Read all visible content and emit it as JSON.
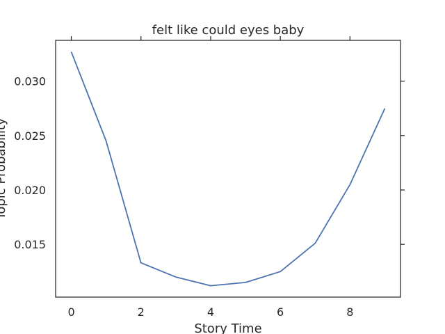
{
  "chart_data": {
    "type": "line",
    "title": "felt like could eyes baby",
    "xlabel": "Story Time",
    "ylabel": "Topic Probability",
    "x": [
      0,
      1,
      2,
      3,
      4,
      5,
      6,
      7,
      8,
      9
    ],
    "series": [
      {
        "values": [
          0.0327,
          0.0245,
          0.0133,
          0.012,
          0.0112,
          0.0115,
          0.0125,
          0.0151,
          0.0205,
          0.0275
        ],
        "color": "#4c72b0"
      }
    ],
    "xlim": [
      -0.45,
      9.45
    ],
    "ylim": [
      0.01015,
      0.03375
    ],
    "xticks": [
      0,
      2,
      4,
      6,
      8
    ],
    "xtick_labels": [
      "0",
      "2",
      "4",
      "6",
      "8"
    ],
    "yticks": [
      0.015,
      0.02,
      0.025,
      0.03
    ],
    "ytick_labels": [
      "0.015",
      "0.020",
      "0.025",
      "0.030"
    ],
    "grid": false,
    "legend": "none"
  }
}
